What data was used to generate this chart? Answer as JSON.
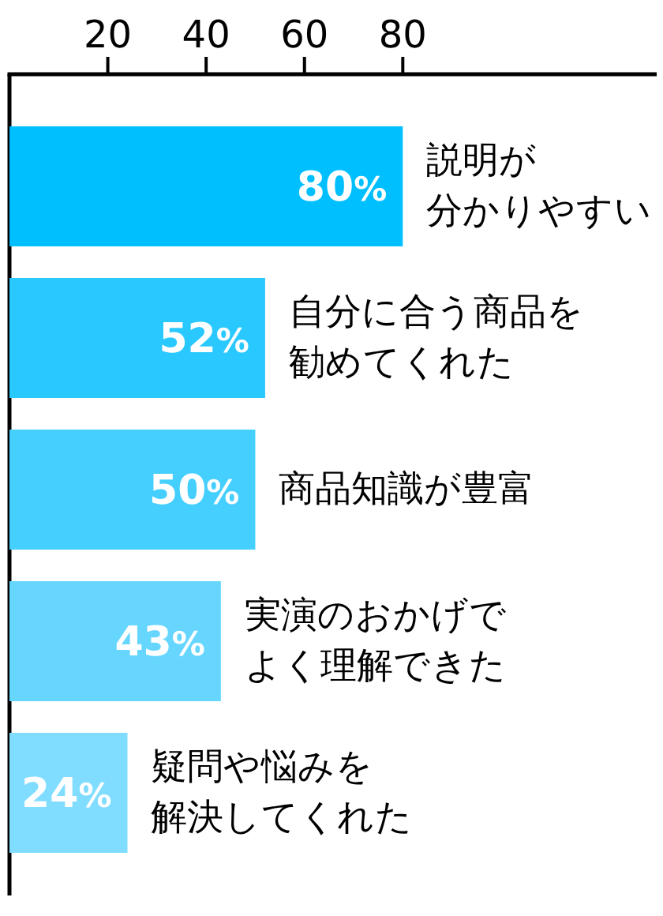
{
  "chart_data": {
    "type": "bar",
    "orientation": "horizontal",
    "categories": [
      "説明が分かりやすい",
      "自分に合う商品を勧めてくれた",
      "商品知識が豊富",
      "実演のおかげでよく理解できた",
      "疑問や悩みを解決してくれた"
    ],
    "values": [
      80,
      52,
      50,
      43,
      24
    ],
    "value_labels": [
      "80%",
      "52%",
      "50%",
      "43%",
      "24%"
    ],
    "colors": [
      "#00bfff",
      "#29c8ff",
      "#45cfff",
      "#66d6ff",
      "#80ddff"
    ],
    "xlim": [
      0,
      131
    ],
    "xticks": [
      20,
      40,
      60,
      80
    ]
  }
}
